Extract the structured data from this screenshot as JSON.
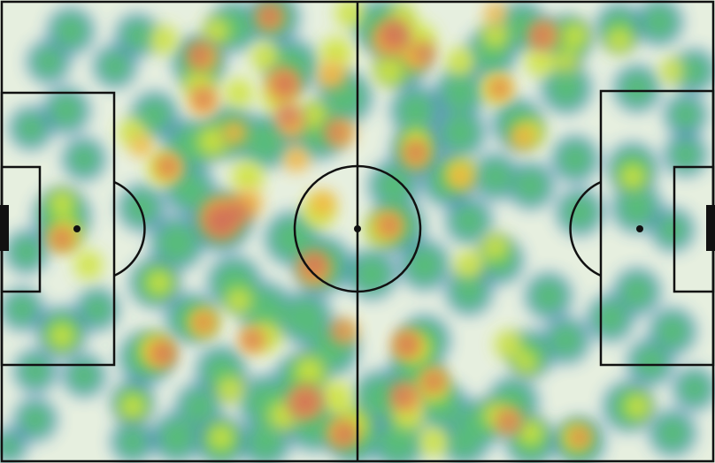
{
  "colors": {
    "pitch_background": "#e6efdf",
    "line_color": "#111111",
    "heat_low": "#3b73b9",
    "heat_mid_low": "#3fb36a",
    "heat_mid": "#cfe33a",
    "heat_high": "#f5b43a",
    "heat_peak": "#d0705a"
  },
  "heatmap": {
    "type": "touch-density",
    "scale": [
      "low",
      "medium",
      "high"
    ]
  }
}
